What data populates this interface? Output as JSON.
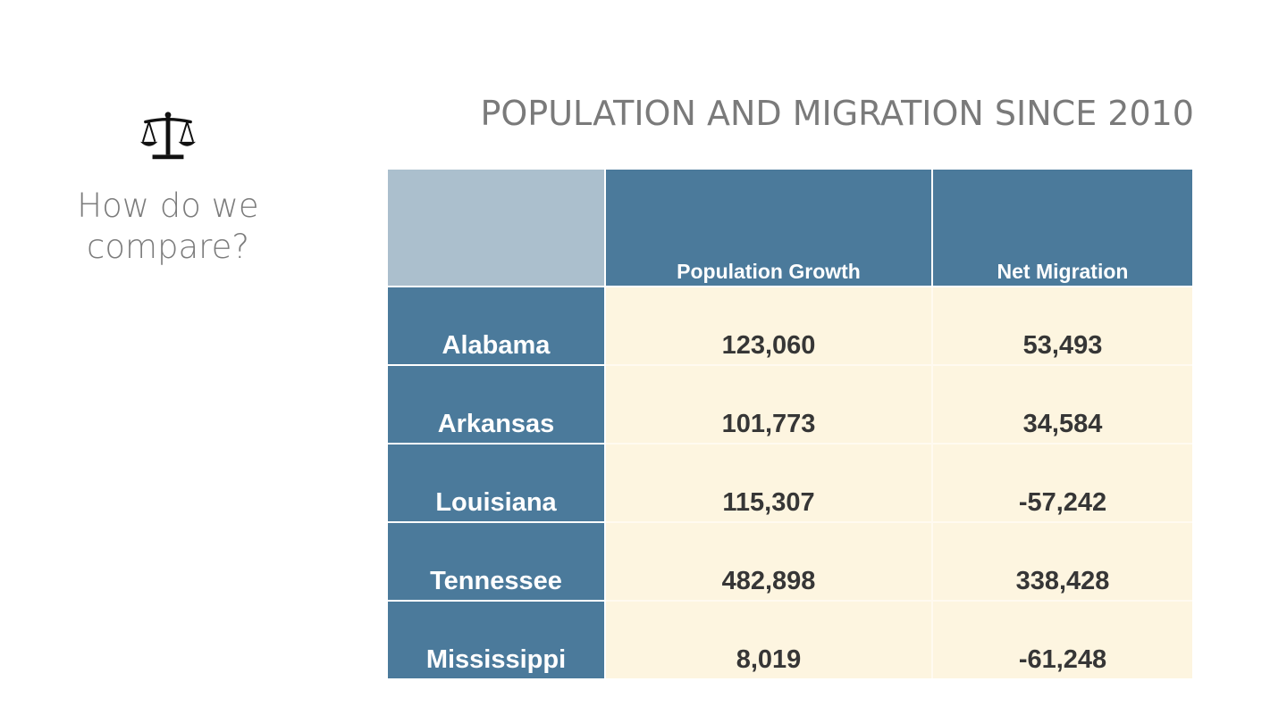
{
  "sidebar": {
    "icon": "balance-scale-icon",
    "question_line1": "How do we",
    "question_line2": "compare?"
  },
  "colors": {
    "header_blue": "#4b7a9b",
    "corner_blue": "#abbfcd",
    "cell_cream": "#fdf5e0",
    "title_gray": "#7a7a7a"
  },
  "chart_data": {
    "type": "table",
    "title": "POPULATION AND MIGRATION SINCE 2010",
    "columns": [
      "",
      "Population Growth",
      "Net Migration"
    ],
    "rows": [
      {
        "state": "Alabama",
        "population_growth": "123,060",
        "net_migration": "53,493"
      },
      {
        "state": "Arkansas",
        "population_growth": "101,773",
        "net_migration": "34,584"
      },
      {
        "state": "Louisiana",
        "population_growth": "115,307",
        "net_migration": "-57,242"
      },
      {
        "state": "Tennessee",
        "population_growth": "482,898",
        "net_migration": "338,428"
      },
      {
        "state": "Mississippi",
        "population_growth": "8,019",
        "net_migration": "-61,248"
      }
    ]
  }
}
